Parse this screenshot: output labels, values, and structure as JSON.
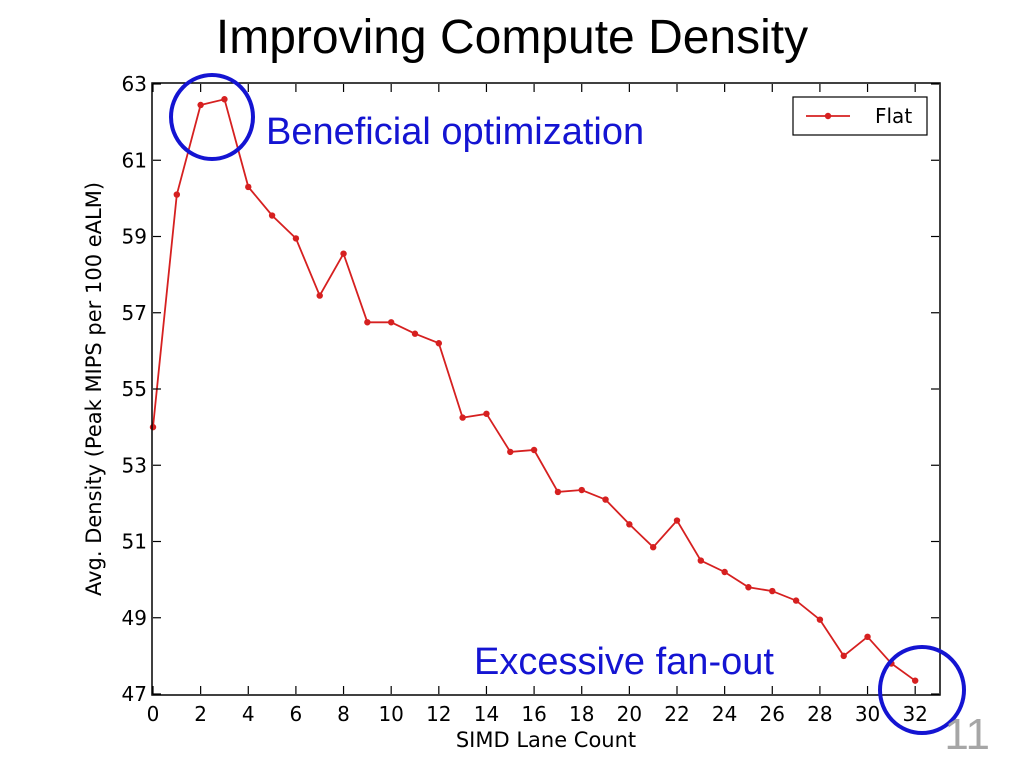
{
  "slide": {
    "title": "Improving Compute Density",
    "number": "11"
  },
  "colors": {
    "series": "#d62020",
    "annotation": "#1414d2",
    "slide_number": "#a6a6a6"
  },
  "annotations": {
    "beneficial": "Beneficial optimization",
    "fanout": "Excessive fan-out"
  },
  "chart_data": {
    "type": "line",
    "title": "",
    "xlabel": "SIMD Lane Count",
    "ylabel": "Avg. Density (Peak MIPS per 100 eALM)",
    "xlim": [
      0,
      33
    ],
    "ylim": [
      47,
      63
    ],
    "xticks": [
      0,
      2,
      4,
      6,
      8,
      10,
      12,
      14,
      16,
      18,
      20,
      22,
      24,
      26,
      28,
      30,
      32
    ],
    "yticks": [
      47,
      49,
      51,
      53,
      55,
      57,
      59,
      61,
      63
    ],
    "grid": false,
    "legend": "top-right",
    "series": [
      {
        "name": "Flat",
        "x": [
          0,
          1,
          2,
          3,
          4,
          5,
          6,
          7,
          8,
          9,
          10,
          11,
          12,
          13,
          14,
          15,
          16,
          17,
          18,
          19,
          20,
          21,
          22,
          23,
          24,
          25,
          26,
          27,
          28,
          29,
          30,
          31,
          32
        ],
        "values": [
          54.0,
          60.1,
          62.45,
          62.6,
          60.3,
          59.55,
          58.95,
          57.45,
          58.55,
          56.75,
          56.75,
          56.45,
          56.2,
          54.25,
          54.35,
          53.35,
          53.4,
          52.3,
          52.35,
          52.1,
          51.45,
          50.85,
          51.55,
          50.5,
          50.2,
          49.8,
          49.7,
          49.45,
          48.95,
          48.0,
          48.5,
          47.8,
          47.35
        ]
      }
    ]
  }
}
